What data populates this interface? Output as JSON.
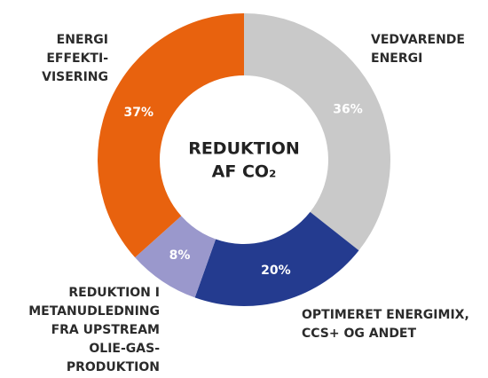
{
  "chart_data": {
    "type": "donut",
    "center_label": [
      "REDUKTION",
      "AF CO₂"
    ],
    "categories": [
      [
        "VEDVARENDE",
        "ENERGI"
      ],
      [
        "OPTIMERET ENERGIMIX,",
        "CCS+ OG ANDET"
      ],
      [
        "REDUKTION I",
        "METANUDLEDNING",
        "FRA UPSTREAM",
        "OLIE-GAS-",
        "PRODUKTION"
      ],
      [
        "ENERGI",
        "EFFEKTI-",
        "VISERING"
      ]
    ],
    "values": [
      36,
      20,
      8,
      37
    ],
    "value_labels": [
      "36%",
      "20%",
      "8%",
      "37%"
    ],
    "colors": [
      "#c9c9c9",
      "#243b8f",
      "#9a98cc",
      "#e8620e"
    ]
  }
}
